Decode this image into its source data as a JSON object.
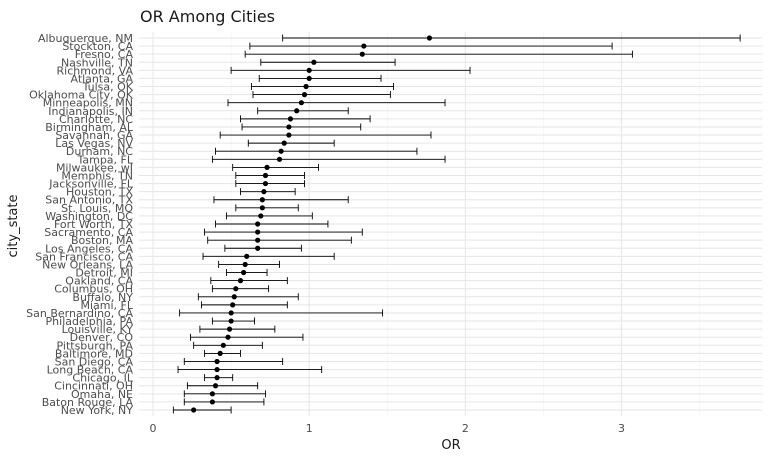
{
  "chart_data": {
    "type": "scatter",
    "title": "OR Among Cities",
    "xlabel": "OR",
    "ylabel": "city_state",
    "xlim": [
      -0.09,
      3.9
    ],
    "xticks": [
      0,
      1,
      2,
      3
    ],
    "grid": true,
    "categories": [
      "Albuquerque, NM",
      "Stockton, CA",
      "Fresno, CA",
      "Nashville, TN",
      "Richmond, VA",
      "Atlanta, GA",
      "Tulsa, OK",
      "Oklahoma City, OK",
      "Minneapolis, MN",
      "Indianapolis, IN",
      "Charlotte, NC",
      "Birmingham, AL",
      "Savannah, GA",
      "Las Vegas, NV",
      "Durham, NC",
      "Tampa, FL",
      "Milwaukee, wI",
      "Memphis, TN",
      "Jacksonville, FL",
      "Houston, TX",
      "San Antonio, TX",
      "St. Louis, MO",
      "Washington, DC",
      "Fort Worth, TX",
      "Sacramento, CA",
      "Boston, MA",
      "Los Angeles, CA",
      "San Francisco, CA",
      "New Orleans, LA",
      "Detroit, MI",
      "Oakland, CA",
      "Columbus, OH",
      "Buffalo, NY",
      "Miami, FL",
      "San Bernardino, CA",
      "Philadelphia, PA",
      "Louisville, KY",
      "Denver, CO",
      "Pittsburgh, PA",
      "Baltimore, MD",
      "San Diego, CA",
      "Long Beach, CA",
      "Chicago, IL",
      "Cincinnati, OH",
      "Omaha, NE",
      "Baton Rouge, LA",
      "New York, NY"
    ],
    "estimate": [
      1.77,
      1.35,
      1.34,
      1.03,
      1.0,
      1.0,
      0.98,
      0.97,
      0.95,
      0.92,
      0.88,
      0.87,
      0.87,
      0.84,
      0.82,
      0.81,
      0.73,
      0.72,
      0.72,
      0.71,
      0.7,
      0.7,
      0.69,
      0.67,
      0.67,
      0.67,
      0.67,
      0.6,
      0.59,
      0.58,
      0.56,
      0.53,
      0.52,
      0.51,
      0.5,
      0.5,
      0.49,
      0.48,
      0.45,
      0.43,
      0.41,
      0.41,
      0.41,
      0.4,
      0.38,
      0.38,
      0.26
    ],
    "lower": [
      0.83,
      0.62,
      0.59,
      0.69,
      0.5,
      0.68,
      0.63,
      0.64,
      0.48,
      0.67,
      0.56,
      0.57,
      0.43,
      0.61,
      0.4,
      0.38,
      0.51,
      0.53,
      0.53,
      0.56,
      0.39,
      0.53,
      0.47,
      0.4,
      0.33,
      0.35,
      0.46,
      0.32,
      0.42,
      0.47,
      0.37,
      0.38,
      0.29,
      0.31,
      0.17,
      0.38,
      0.3,
      0.24,
      0.26,
      0.33,
      0.2,
      0.16,
      0.33,
      0.22,
      0.2,
      0.2,
      0.13
    ],
    "upper": [
      3.76,
      2.94,
      3.07,
      1.55,
      2.03,
      1.46,
      1.54,
      1.52,
      1.87,
      1.25,
      1.39,
      1.33,
      1.78,
      1.16,
      1.69,
      1.87,
      1.06,
      0.97,
      0.97,
      0.91,
      1.25,
      0.93,
      1.02,
      1.12,
      1.34,
      1.27,
      0.95,
      1.16,
      0.81,
      0.73,
      0.86,
      0.74,
      0.93,
      0.86,
      1.47,
      0.65,
      0.78,
      0.96,
      0.7,
      0.56,
      0.83,
      1.08,
      0.51,
      0.67,
      0.72,
      0.71,
      0.5
    ]
  }
}
